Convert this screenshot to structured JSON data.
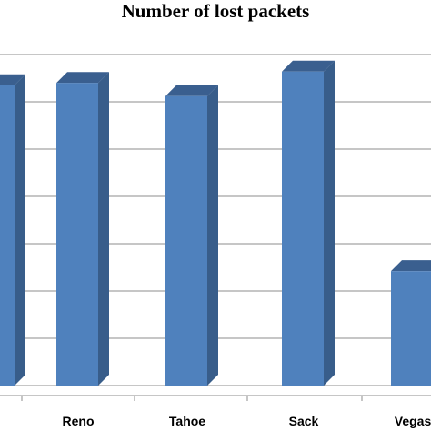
{
  "chart_data": {
    "type": "bar",
    "title": "Number of lost packets",
    "categories": [
      "Reno",
      "Tahoe",
      "Sack",
      "Vegas"
    ],
    "values": [
      6400,
      6120,
      6640,
      2420
    ],
    "partial_first_bar_value": 6350,
    "ylim": [
      0,
      8000
    ],
    "gridline_step": 1000,
    "grid": true,
    "legend": "none",
    "style": "3d-column",
    "colors": {
      "front": "#4f81bd",
      "side": "#385d8a",
      "top": "#3a5f8f",
      "grid": "#8c8c8c"
    }
  }
}
